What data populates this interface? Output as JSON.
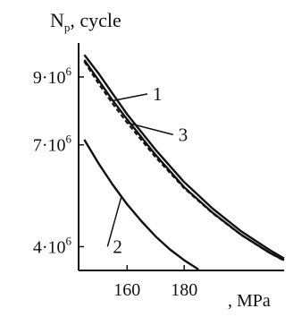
{
  "chart_data": {
    "type": "line",
    "ylabel": "N",
    "ylabel_sub": "p",
    "ylabel_suffix": ", cycle",
    "xlabel": ", MPa",
    "xlim": [
      143,
      215
    ],
    "ylim": [
      3300000,
      10000000
    ],
    "xticks": [
      {
        "value": 160,
        "label": "160"
      },
      {
        "value": 180,
        "label": "180"
      }
    ],
    "yticks": [
      {
        "value": 9000000,
        "base": "9·10",
        "exp": "6"
      },
      {
        "value": 7000000,
        "base": "7·10",
        "exp": "6"
      },
      {
        "value": 4000000,
        "base": "4·10",
        "exp": "6"
      }
    ],
    "grid": false,
    "series": [
      {
        "name": "1",
        "style": "solid",
        "x": [
          145,
          150,
          155,
          160,
          170,
          180,
          190,
          200,
          210,
          215
        ],
        "y": [
          9500000,
          8900000,
          8300000,
          7750000,
          6700000,
          5750000,
          5000000,
          4350000,
          3820000,
          3600000
        ]
      },
      {
        "name": "3",
        "style": "dashed",
        "x": [
          145,
          150,
          155,
          160,
          170,
          180,
          190,
          200,
          210,
          215
        ],
        "y": [
          9450000,
          8800000,
          8200000,
          7650000,
          6630000,
          5720000,
          4980000,
          4340000,
          3810000,
          3590000
        ]
      },
      {
        "name": "",
        "style": "solid",
        "x": [
          145,
          150,
          155,
          160,
          170,
          180,
          190,
          200,
          210,
          215
        ],
        "y": [
          9650000,
          9100000,
          8500000,
          7900000,
          6850000,
          5900000,
          5120000,
          4450000,
          3900000,
          3650000
        ]
      },
      {
        "name": "2",
        "style": "solid",
        "x": [
          145,
          150,
          155,
          160,
          165,
          170,
          175,
          180,
          185
        ],
        "y": [
          7150000,
          6450000,
          5820000,
          5250000,
          4750000,
          4300000,
          3920000,
          3600000,
          3330000
        ]
      }
    ],
    "annotations": [
      {
        "text": "1",
        "series": 0,
        "x": 155,
        "lx": 169,
        "ly": 8500000
      },
      {
        "text": "3",
        "series": 1,
        "x": 160,
        "lx": 178,
        "ly": 7300000
      },
      {
        "text": "2",
        "series": 3,
        "x": 158,
        "lx": 155,
        "ly": 4000000
      }
    ]
  }
}
